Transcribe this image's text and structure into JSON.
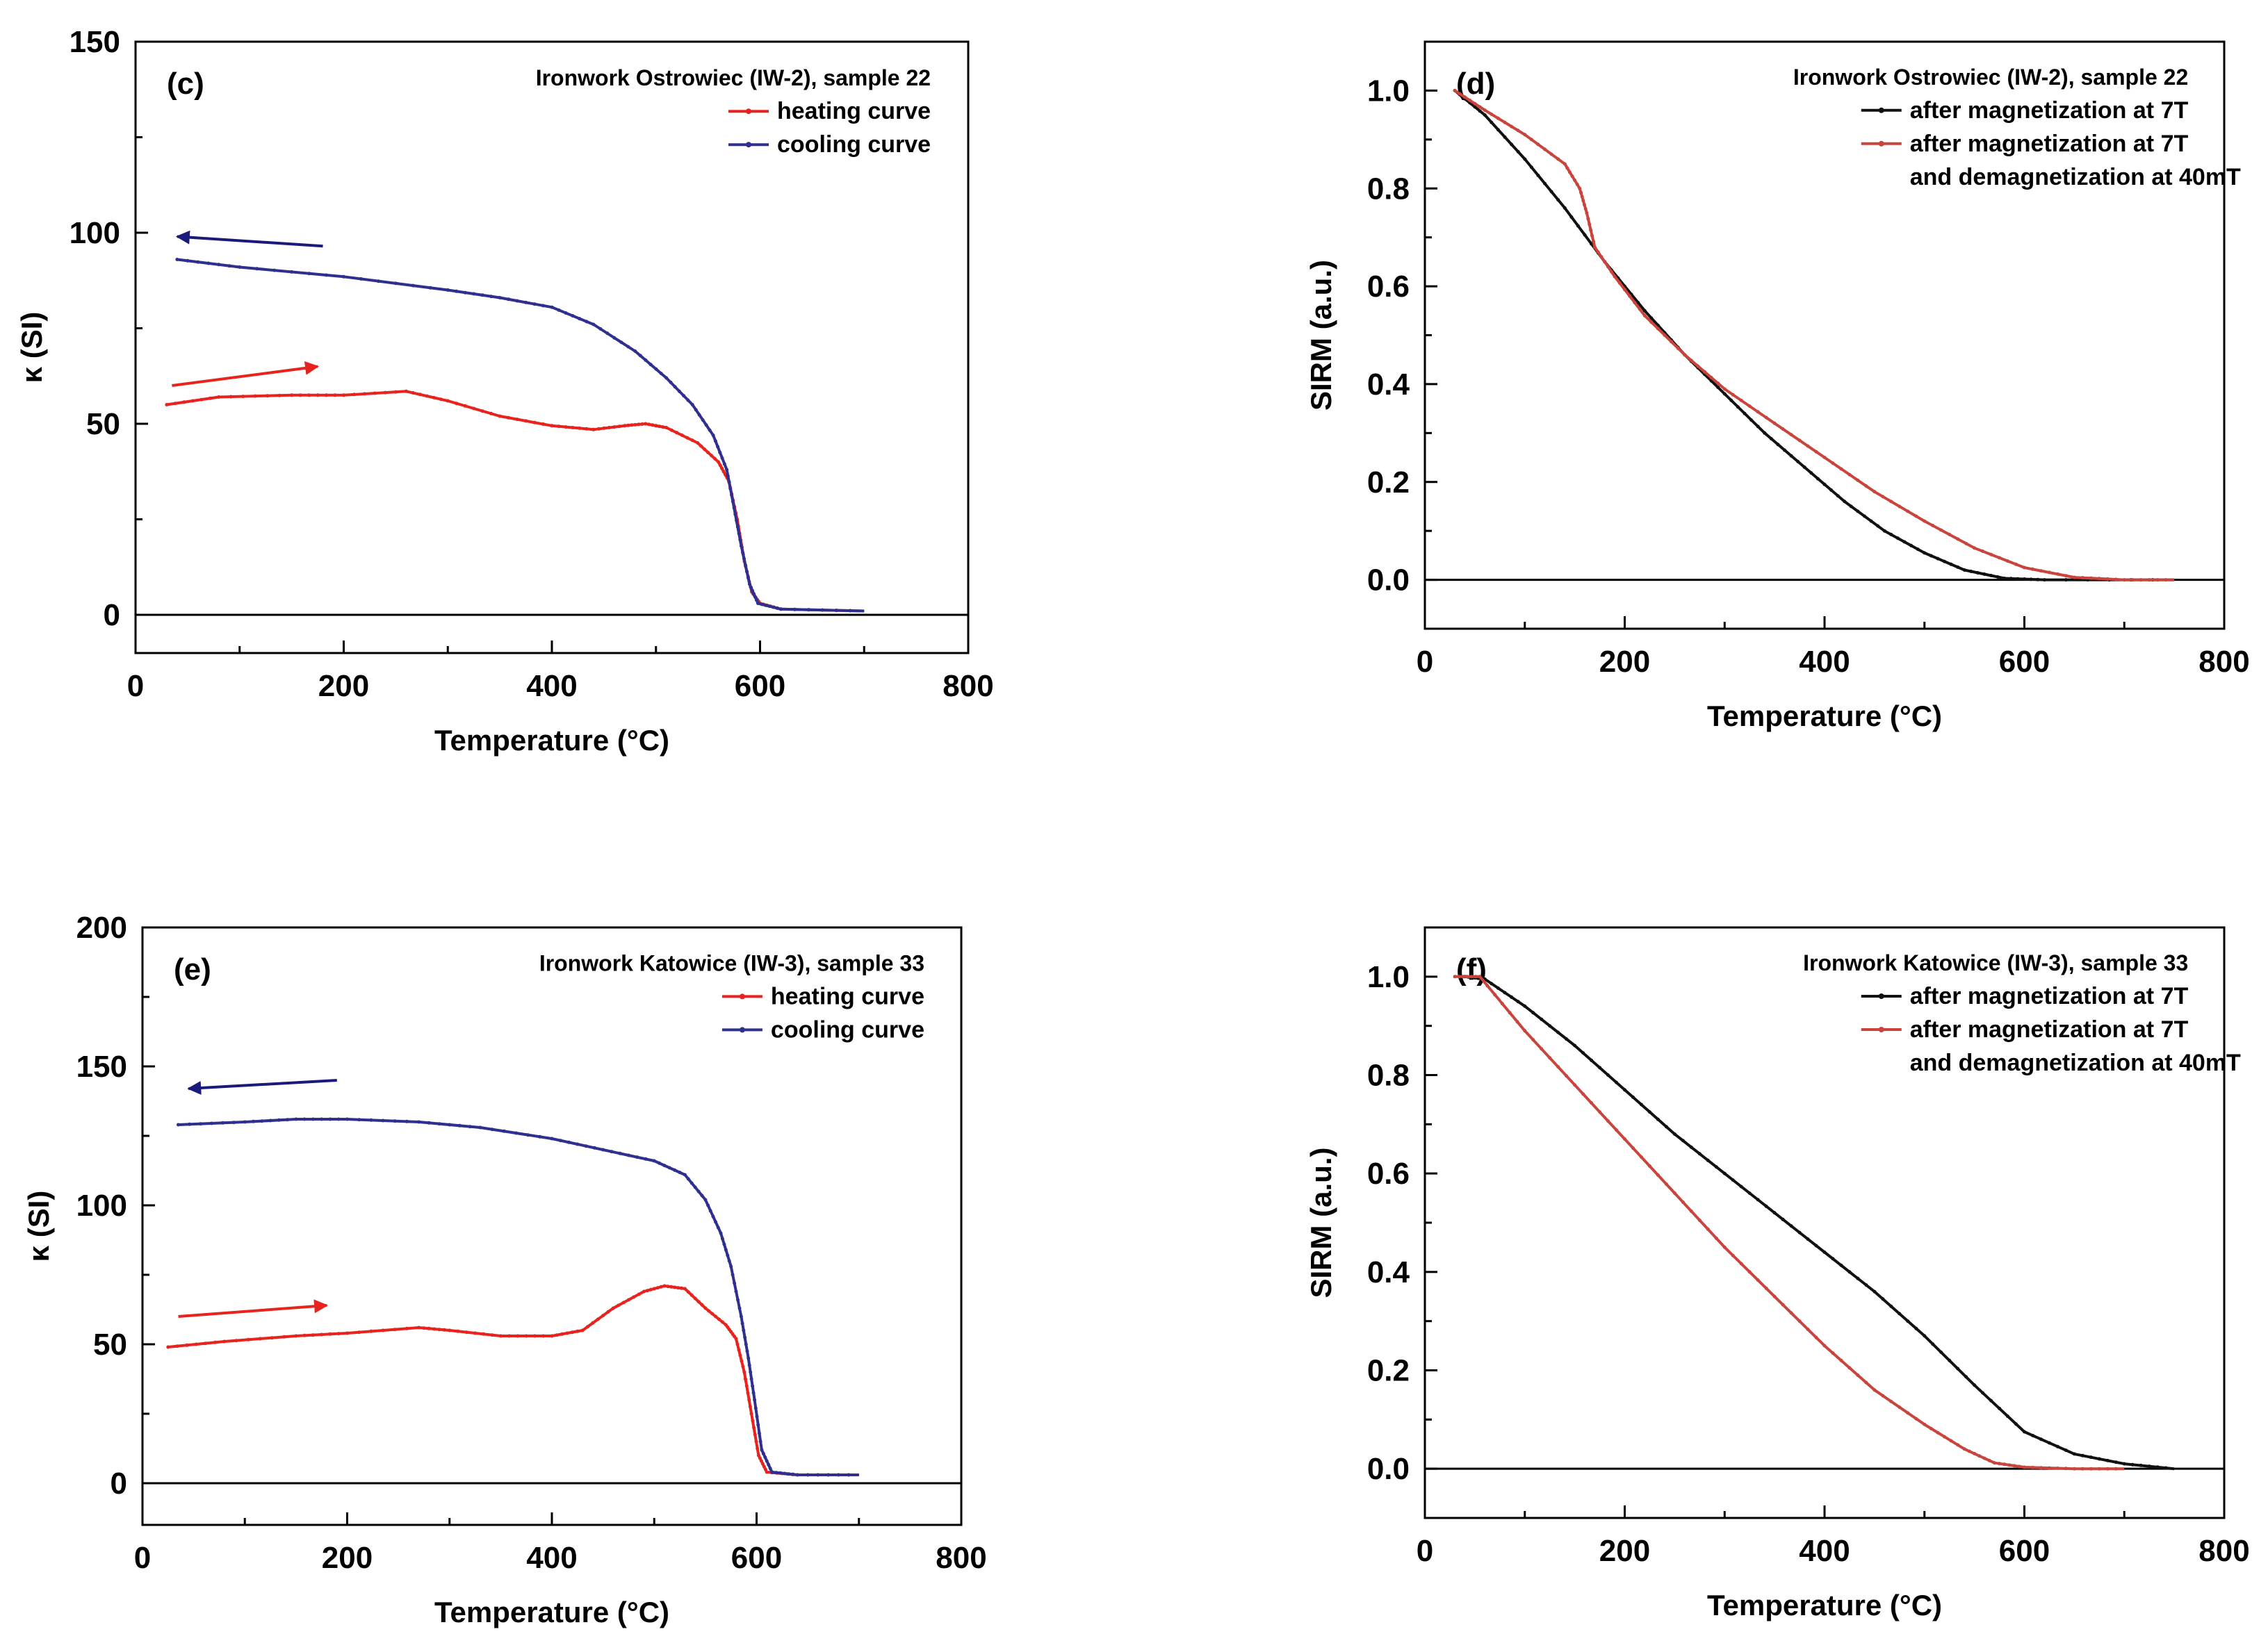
{
  "chart_data": [
    {
      "panel": "(c)",
      "type": "line",
      "legend_title": "Ironwork Ostrowiec (IW-2), sample 22",
      "xlabel": "Temperature (°C)",
      "ylabel": "κ (SI)",
      "xlim": [
        0,
        800
      ],
      "ylim": [
        -10,
        150
      ],
      "xticks": [
        0,
        200,
        400,
        600,
        800
      ],
      "yticks": [
        0,
        50,
        100,
        150
      ],
      "series": [
        {
          "name": "heating curve",
          "color": "#e8221c",
          "points": [
            [
              30,
              55
            ],
            [
              80,
              57
            ],
            [
              150,
              57.5
            ],
            [
              200,
              57.5
            ],
            [
              260,
              58.5
            ],
            [
              300,
              56
            ],
            [
              350,
              52
            ],
            [
              400,
              49.5
            ],
            [
              440,
              48.5
            ],
            [
              470,
              49.5
            ],
            [
              490,
              50
            ],
            [
              510,
              49
            ],
            [
              540,
              45
            ],
            [
              560,
              40
            ],
            [
              570,
              35
            ],
            [
              578,
              25
            ],
            [
              585,
              14
            ],
            [
              592,
              6
            ],
            [
              600,
              3
            ],
            [
              620,
              1.5
            ],
            [
              700,
              1
            ]
          ]
        },
        {
          "name": "cooling curve",
          "color": "#2e2f8e",
          "points": [
            [
              40,
              93
            ],
            [
              100,
              91
            ],
            [
              200,
              88.5
            ],
            [
              300,
              85
            ],
            [
              350,
              83
            ],
            [
              400,
              80.5
            ],
            [
              440,
              76
            ],
            [
              480,
              69
            ],
            [
              510,
              62
            ],
            [
              535,
              55
            ],
            [
              555,
              47
            ],
            [
              568,
              38
            ],
            [
              575,
              28
            ],
            [
              582,
              18
            ],
            [
              590,
              8
            ],
            [
              598,
              3
            ],
            [
              620,
              1.5
            ],
            [
              700,
              1
            ]
          ]
        }
      ],
      "arrows": [
        {
          "direction": "left",
          "color": "#1a1a7a",
          "from": [
            180,
            96.5
          ],
          "to": [
            40,
            99
          ]
        },
        {
          "direction": "right",
          "color": "#e8221c",
          "from": [
            35,
            60
          ],
          "to": [
            175,
            65
          ]
        }
      ]
    },
    {
      "panel": "(d)",
      "type": "line",
      "legend_title": "Ironwork Ostrowiec (IW-2), sample 22",
      "xlabel": "Temperature (°C)",
      "ylabel": "SIRM (a.u.)",
      "xlim": [
        0,
        800
      ],
      "ylim": [
        -0.1,
        1.1
      ],
      "xticks": [
        0,
        200,
        400,
        600,
        800
      ],
      "yticks": [
        0.0,
        0.2,
        0.4,
        0.6,
        0.8,
        1.0
      ],
      "series": [
        {
          "name": "after magnetization at 7T",
          "color": "#111111",
          "points": [
            [
              30,
              1.0
            ],
            [
              60,
              0.95
            ],
            [
              100,
              0.86
            ],
            [
              140,
              0.76
            ],
            [
              180,
              0.65
            ],
            [
              220,
              0.55
            ],
            [
              260,
              0.46
            ],
            [
              300,
              0.38
            ],
            [
              340,
              0.3
            ],
            [
              380,
              0.23
            ],
            [
              420,
              0.16
            ],
            [
              460,
              0.1
            ],
            [
              500,
              0.055
            ],
            [
              540,
              0.02
            ],
            [
              580,
              0.003
            ],
            [
              620,
              0.0
            ],
            [
              750,
              0.0
            ]
          ]
        },
        {
          "name": "after magnetization at 7T\nand demagnetization at 40mT",
          "color": "#c8443c",
          "points": [
            [
              30,
              1.0
            ],
            [
              60,
              0.96
            ],
            [
              100,
              0.91
            ],
            [
              140,
              0.85
            ],
            [
              155,
              0.8
            ],
            [
              162,
              0.75
            ],
            [
              170,
              0.68
            ],
            [
              190,
              0.62
            ],
            [
              220,
              0.54
            ],
            [
              260,
              0.46
            ],
            [
              300,
              0.39
            ],
            [
              350,
              0.32
            ],
            [
              400,
              0.25
            ],
            [
              450,
              0.18
            ],
            [
              500,
              0.12
            ],
            [
              550,
              0.065
            ],
            [
              600,
              0.025
            ],
            [
              650,
              0.005
            ],
            [
              700,
              0.0
            ],
            [
              750,
              0.0
            ]
          ]
        }
      ]
    },
    {
      "panel": "(e)",
      "type": "line",
      "legend_title": "Ironwork Katowice (IW-3), sample 33",
      "xlabel": "Temperature (°C)",
      "ylabel": "κ (SI)",
      "xlim": [
        0,
        800
      ],
      "ylim": [
        -15,
        200
      ],
      "xticks": [
        0,
        200,
        400,
        600,
        800
      ],
      "yticks": [
        0,
        50,
        100,
        150,
        200
      ],
      "series": [
        {
          "name": "heating curve",
          "color": "#e8221c",
          "points": [
            [
              25,
              49
            ],
            [
              80,
              51
            ],
            [
              150,
              53
            ],
            [
              200,
              54
            ],
            [
              270,
              56
            ],
            [
              300,
              55
            ],
            [
              350,
              53
            ],
            [
              400,
              53
            ],
            [
              430,
              55
            ],
            [
              460,
              63
            ],
            [
              490,
              69
            ],
            [
              510,
              71
            ],
            [
              530,
              70
            ],
            [
              550,
              63
            ],
            [
              570,
              57
            ],
            [
              580,
              52
            ],
            [
              588,
              40
            ],
            [
              595,
              25
            ],
            [
              602,
              10
            ],
            [
              610,
              4
            ],
            [
              640,
              3
            ],
            [
              700,
              3
            ]
          ]
        },
        {
          "name": "cooling curve",
          "color": "#2e2f8e",
          "points": [
            [
              35,
              129
            ],
            [
              100,
              130
            ],
            [
              150,
              131
            ],
            [
              200,
              131
            ],
            [
              270,
              130
            ],
            [
              330,
              128
            ],
            [
              400,
              124
            ],
            [
              450,
              120
            ],
            [
              500,
              116
            ],
            [
              530,
              111
            ],
            [
              550,
              102
            ],
            [
              565,
              90
            ],
            [
              575,
              78
            ],
            [
              585,
              60
            ],
            [
              592,
              45
            ],
            [
              598,
              30
            ],
            [
              605,
              12
            ],
            [
              615,
              4
            ],
            [
              640,
              3
            ],
            [
              700,
              3
            ]
          ]
        }
      ],
      "arrows": [
        {
          "direction": "left",
          "color": "#1a1a7a",
          "from": [
            190,
            145
          ],
          "to": [
            45,
            142
          ]
        },
        {
          "direction": "right",
          "color": "#e8221c",
          "from": [
            35,
            60
          ],
          "to": [
            180,
            64
          ]
        }
      ]
    },
    {
      "panel": "(f)",
      "type": "line",
      "legend_title": "Ironwork Katowice (IW-3), sample 33",
      "xlabel": "Temperature (°C)",
      "ylabel": "SIRM (a.u.)",
      "xlim": [
        0,
        800
      ],
      "ylim": [
        -0.1,
        1.1
      ],
      "xticks": [
        0,
        200,
        400,
        600,
        800
      ],
      "yticks": [
        0.0,
        0.2,
        0.4,
        0.6,
        0.8,
        1.0
      ],
      "series": [
        {
          "name": "after magnetization at 7T",
          "color": "#111111",
          "points": [
            [
              40,
              1.0
            ],
            [
              60,
              0.995
            ],
            [
              100,
              0.94
            ],
            [
              150,
              0.86
            ],
            [
              200,
              0.77
            ],
            [
              250,
              0.68
            ],
            [
              300,
              0.6
            ],
            [
              350,
              0.52
            ],
            [
              400,
              0.44
            ],
            [
              450,
              0.36
            ],
            [
              500,
              0.27
            ],
            [
              550,
              0.17
            ],
            [
              600,
              0.075
            ],
            [
              650,
              0.03
            ],
            [
              700,
              0.01
            ],
            [
              750,
              0.0
            ]
          ]
        },
        {
          "name": "after magnetization at 7T\nand demagnetization at 40mT",
          "color": "#c8443c",
          "points": [
            [
              30,
              1.0
            ],
            [
              55,
              1.0
            ],
            [
              100,
              0.89
            ],
            [
              150,
              0.78
            ],
            [
              200,
              0.67
            ],
            [
              250,
              0.56
            ],
            [
              300,
              0.45
            ],
            [
              350,
              0.35
            ],
            [
              400,
              0.25
            ],
            [
              450,
              0.16
            ],
            [
              500,
              0.09
            ],
            [
              540,
              0.04
            ],
            [
              570,
              0.012
            ],
            [
              600,
              0.003
            ],
            [
              650,
              0.0
            ],
            [
              700,
              0.0
            ]
          ]
        }
      ]
    }
  ]
}
